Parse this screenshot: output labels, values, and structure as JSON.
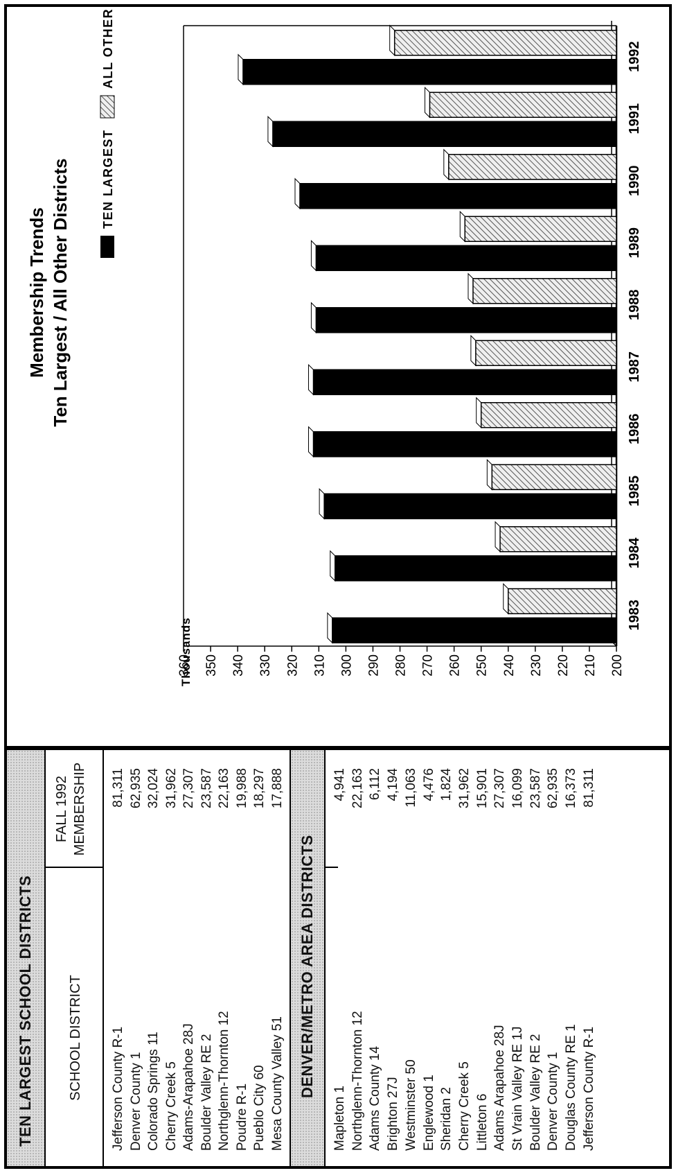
{
  "tables": {
    "ten_largest": {
      "title": "TEN LARGEST SCHOOL DISTRICTS",
      "col_district": "SCHOOL DISTRICT",
      "col_membership_1": "FALL 1992",
      "col_membership_2": "MEMBERSHIP",
      "rows": [
        {
          "district": "Jefferson County R-1",
          "membership": "81,311"
        },
        {
          "district": "Denver County 1",
          "membership": "62,935"
        },
        {
          "district": "Colorado Springs 11",
          "membership": "32,024"
        },
        {
          "district": "Cherry Creek 5",
          "membership": "31,962"
        },
        {
          "district": "Adams-Arapahoe 28J",
          "membership": "27,307"
        },
        {
          "district": "Boulder Valley RE 2",
          "membership": "23,587"
        },
        {
          "district": "Northglenn-Thornton 12",
          "membership": "22,163"
        },
        {
          "district": "Poudre R-1",
          "membership": "19,988"
        },
        {
          "district": "Pueblo City 60",
          "membership": "18,297"
        },
        {
          "district": "Mesa County Valley 51",
          "membership": "17,888"
        }
      ]
    },
    "denver_metro": {
      "title": "DENVER/METRO AREA DISTRICTS",
      "rows": [
        {
          "district": "Mapleton 1",
          "membership": "4,941"
        },
        {
          "district": "Northglenn-Thornton 12",
          "membership": "22,163"
        },
        {
          "district": "Adams County 14",
          "membership": "6,112"
        },
        {
          "district": "Brighton 27J",
          "membership": "4,194"
        },
        {
          "district": "Westminster 50",
          "membership": "11,063"
        },
        {
          "district": "Englewood 1",
          "membership": "4,476"
        },
        {
          "district": "Sheridan 2",
          "membership": "1,824"
        },
        {
          "district": "Cherry Creek 5",
          "membership": "31,962"
        },
        {
          "district": "Littleton 6",
          "membership": "15,901"
        },
        {
          "district": "Adams Arapahoe 28J",
          "membership": "27,307"
        },
        {
          "district": "St Vrain Valley RE 1J",
          "membership": "16,099"
        },
        {
          "district": "Boulder Valley RE 2",
          "membership": "23,587"
        },
        {
          "district": "Denver County 1",
          "membership": "62,935"
        },
        {
          "district": "Douglas County RE 1",
          "membership": "16,373"
        },
        {
          "district": "Jefferson County R-1",
          "membership": "81,311"
        }
      ]
    }
  },
  "chart_data": {
    "type": "bar",
    "title": "Membership Trends",
    "subtitle": "Ten Largest / All Other Districts",
    "ylabel": "Thousands",
    "xlabel": "",
    "ylim": [
      200,
      360
    ],
    "yticks": [
      200,
      210,
      220,
      230,
      240,
      250,
      260,
      270,
      280,
      290,
      300,
      310,
      320,
      330,
      340,
      350,
      360
    ],
    "categories": [
      "1983",
      "1984",
      "1985",
      "1986",
      "1987",
      "1988",
      "1989",
      "1990",
      "1991",
      "1992"
    ],
    "legend_position": "top-left",
    "series": [
      {
        "name": "TEN LARGEST",
        "color": "#000000",
        "values": [
          305,
          304,
          308,
          312,
          312,
          311,
          311,
          317,
          327,
          338
        ]
      },
      {
        "name": "ALL OTHER DISTRICTS",
        "color": "#cccccc",
        "values": [
          240,
          243,
          246,
          250,
          252,
          253,
          256,
          262,
          269,
          282
        ]
      }
    ]
  }
}
